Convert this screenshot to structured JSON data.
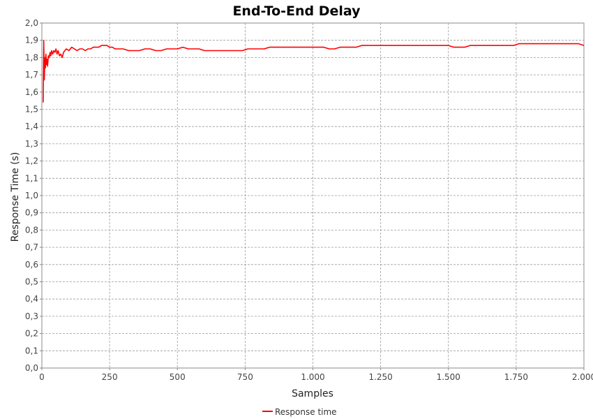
{
  "chart_data": {
    "type": "line",
    "title": "End-To-End Delay",
    "xlabel": "Samples",
    "ylabel": "Response Time (s)",
    "xlim": [
      0,
      2000
    ],
    "ylim": [
      0.0,
      2.0
    ],
    "x_ticks": [
      0,
      250,
      500,
      750,
      1000,
      1250,
      1500,
      1750,
      2000
    ],
    "x_tick_labels": [
      "0",
      "250",
      "500",
      "750",
      "1.000",
      "1.250",
      "1.500",
      "1.750",
      "2.000"
    ],
    "y_ticks": [
      0.0,
      0.1,
      0.2,
      0.3,
      0.4,
      0.5,
      0.6,
      0.7,
      0.8,
      0.9,
      1.0,
      1.1,
      1.2,
      1.3,
      1.4,
      1.5,
      1.6,
      1.7,
      1.8,
      1.9,
      2.0
    ],
    "y_tick_labels": [
      "0,0",
      "0,1",
      "0,2",
      "0,3",
      "0,4",
      "0,5",
      "0,6",
      "0,7",
      "0,8",
      "0,9",
      "1,0",
      "1,1",
      "1,2",
      "1,3",
      "1,4",
      "1,5",
      "1,6",
      "1,7",
      "1,8",
      "1,9",
      "2,0"
    ],
    "grid": true,
    "legend_position": "bottom-center",
    "series": [
      {
        "name": "Response time",
        "color": "#ff0000",
        "x": [
          5,
          7,
          9,
          11,
          13,
          15,
          17,
          19,
          21,
          24,
          27,
          30,
          33,
          36,
          40,
          44,
          48,
          52,
          56,
          60,
          65,
          70,
          75,
          80,
          85,
          90,
          100,
          110,
          120,
          130,
          140,
          150,
          160,
          170,
          180,
          190,
          200,
          210,
          220,
          230,
          240,
          250,
          260,
          270,
          280,
          300,
          320,
          340,
          360,
          380,
          400,
          420,
          440,
          460,
          480,
          500,
          520,
          540,
          560,
          580,
          600,
          620,
          640,
          660,
          680,
          700,
          720,
          740,
          760,
          780,
          800,
          820,
          840,
          860,
          880,
          900,
          920,
          940,
          960,
          980,
          1000,
          1020,
          1040,
          1060,
          1080,
          1100,
          1120,
          1140,
          1160,
          1180,
          1200,
          1220,
          1240,
          1260,
          1280,
          1300,
          1320,
          1340,
          1360,
          1380,
          1400,
          1420,
          1440,
          1460,
          1480,
          1500,
          1520,
          1540,
          1560,
          1580,
          1600,
          1620,
          1640,
          1660,
          1680,
          1700,
          1720,
          1740,
          1760,
          1780,
          1800,
          1820,
          1840,
          1860,
          1880,
          1900,
          1920,
          1940,
          1960,
          1980,
          2000
        ],
        "y": [
          1.54,
          1.9,
          1.67,
          1.8,
          1.74,
          1.82,
          1.76,
          1.79,
          1.75,
          1.81,
          1.8,
          1.83,
          1.81,
          1.84,
          1.82,
          1.84,
          1.83,
          1.85,
          1.82,
          1.84,
          1.81,
          1.82,
          1.8,
          1.83,
          1.84,
          1.85,
          1.84,
          1.86,
          1.85,
          1.84,
          1.85,
          1.85,
          1.84,
          1.85,
          1.85,
          1.86,
          1.86,
          1.86,
          1.87,
          1.87,
          1.87,
          1.86,
          1.86,
          1.85,
          1.85,
          1.85,
          1.84,
          1.84,
          1.84,
          1.85,
          1.85,
          1.84,
          1.84,
          1.85,
          1.85,
          1.85,
          1.86,
          1.85,
          1.85,
          1.85,
          1.84,
          1.84,
          1.84,
          1.84,
          1.84,
          1.84,
          1.84,
          1.84,
          1.85,
          1.85,
          1.85,
          1.85,
          1.86,
          1.86,
          1.86,
          1.86,
          1.86,
          1.86,
          1.86,
          1.86,
          1.86,
          1.86,
          1.86,
          1.85,
          1.85,
          1.86,
          1.86,
          1.86,
          1.86,
          1.87,
          1.87,
          1.87,
          1.87,
          1.87,
          1.87,
          1.87,
          1.87,
          1.87,
          1.87,
          1.87,
          1.87,
          1.87,
          1.87,
          1.87,
          1.87,
          1.87,
          1.86,
          1.86,
          1.86,
          1.87,
          1.87,
          1.87,
          1.87,
          1.87,
          1.87,
          1.87,
          1.87,
          1.87,
          1.88,
          1.88,
          1.88,
          1.88,
          1.88,
          1.88,
          1.88,
          1.88,
          1.88,
          1.88,
          1.88,
          1.88,
          1.87
        ]
      }
    ]
  }
}
